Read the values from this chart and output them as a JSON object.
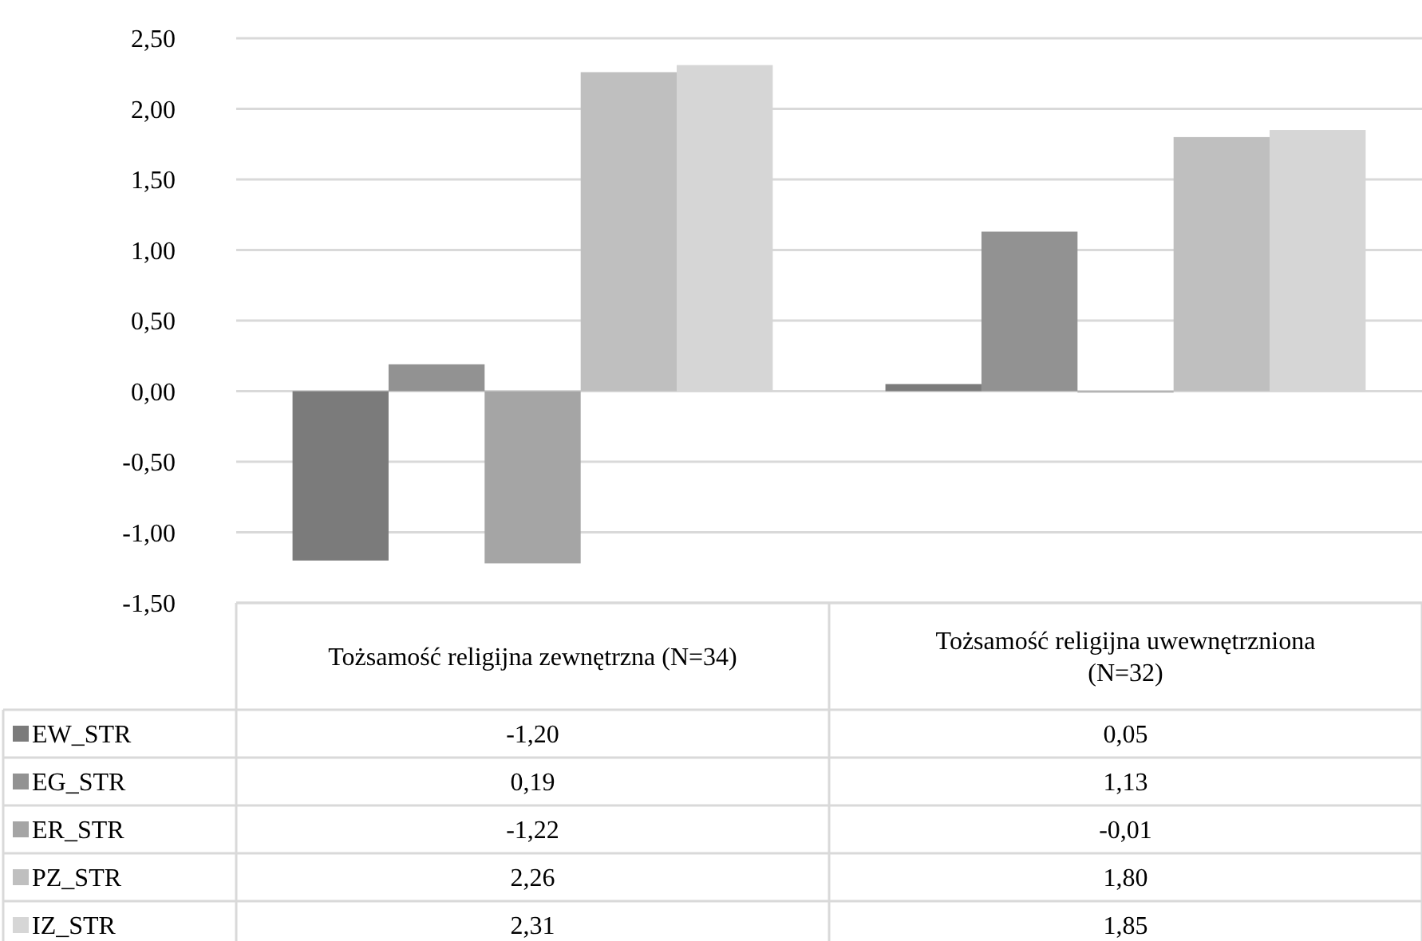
{
  "chart_data": {
    "type": "bar",
    "categories": [
      "Tożsamość religijna zewnętrzna (N=34)",
      "Tożsamość religijna uwewnętrzniona (N=32)"
    ],
    "series": [
      {
        "name": "EW_STR",
        "color": "#7b7b7b",
        "values": [
          -1.2,
          0.05
        ],
        "value_labels": [
          "-1,20",
          "0,05"
        ]
      },
      {
        "name": "EG_STR",
        "color": "#929292",
        "values": [
          0.19,
          1.13
        ],
        "value_labels": [
          "0,19",
          "1,13"
        ]
      },
      {
        "name": "ER_STR",
        "color": "#a5a5a5",
        "values": [
          -1.22,
          -0.01
        ],
        "value_labels": [
          "-1,22",
          "-0,01"
        ]
      },
      {
        "name": "PZ_STR",
        "color": "#bfbfbf",
        "values": [
          2.26,
          1.8
        ],
        "value_labels": [
          "2,26",
          "1,80"
        ]
      },
      {
        "name": "IZ_STR",
        "color": "#d6d6d6",
        "values": [
          2.31,
          1.85
        ],
        "value_labels": [
          "2,31",
          "1,85"
        ]
      }
    ],
    "ylim": [
      -1.5,
      2.5
    ],
    "yticks": [
      {
        "value": -1.5,
        "label": "-1,50"
      },
      {
        "value": -1,
        "label": "-1,00"
      },
      {
        "value": -0.5,
        "label": "-0,50"
      },
      {
        "value": 0,
        "label": "0,00"
      },
      {
        "value": 0.5,
        "label": "0,50"
      },
      {
        "value": 1,
        "label": "1,00"
      },
      {
        "value": 1.5,
        "label": "1,50"
      },
      {
        "value": 2,
        "label": "2,00"
      },
      {
        "value": 2.5,
        "label": "2,50"
      }
    ],
    "grid": "y",
    "legend": "bottom"
  }
}
